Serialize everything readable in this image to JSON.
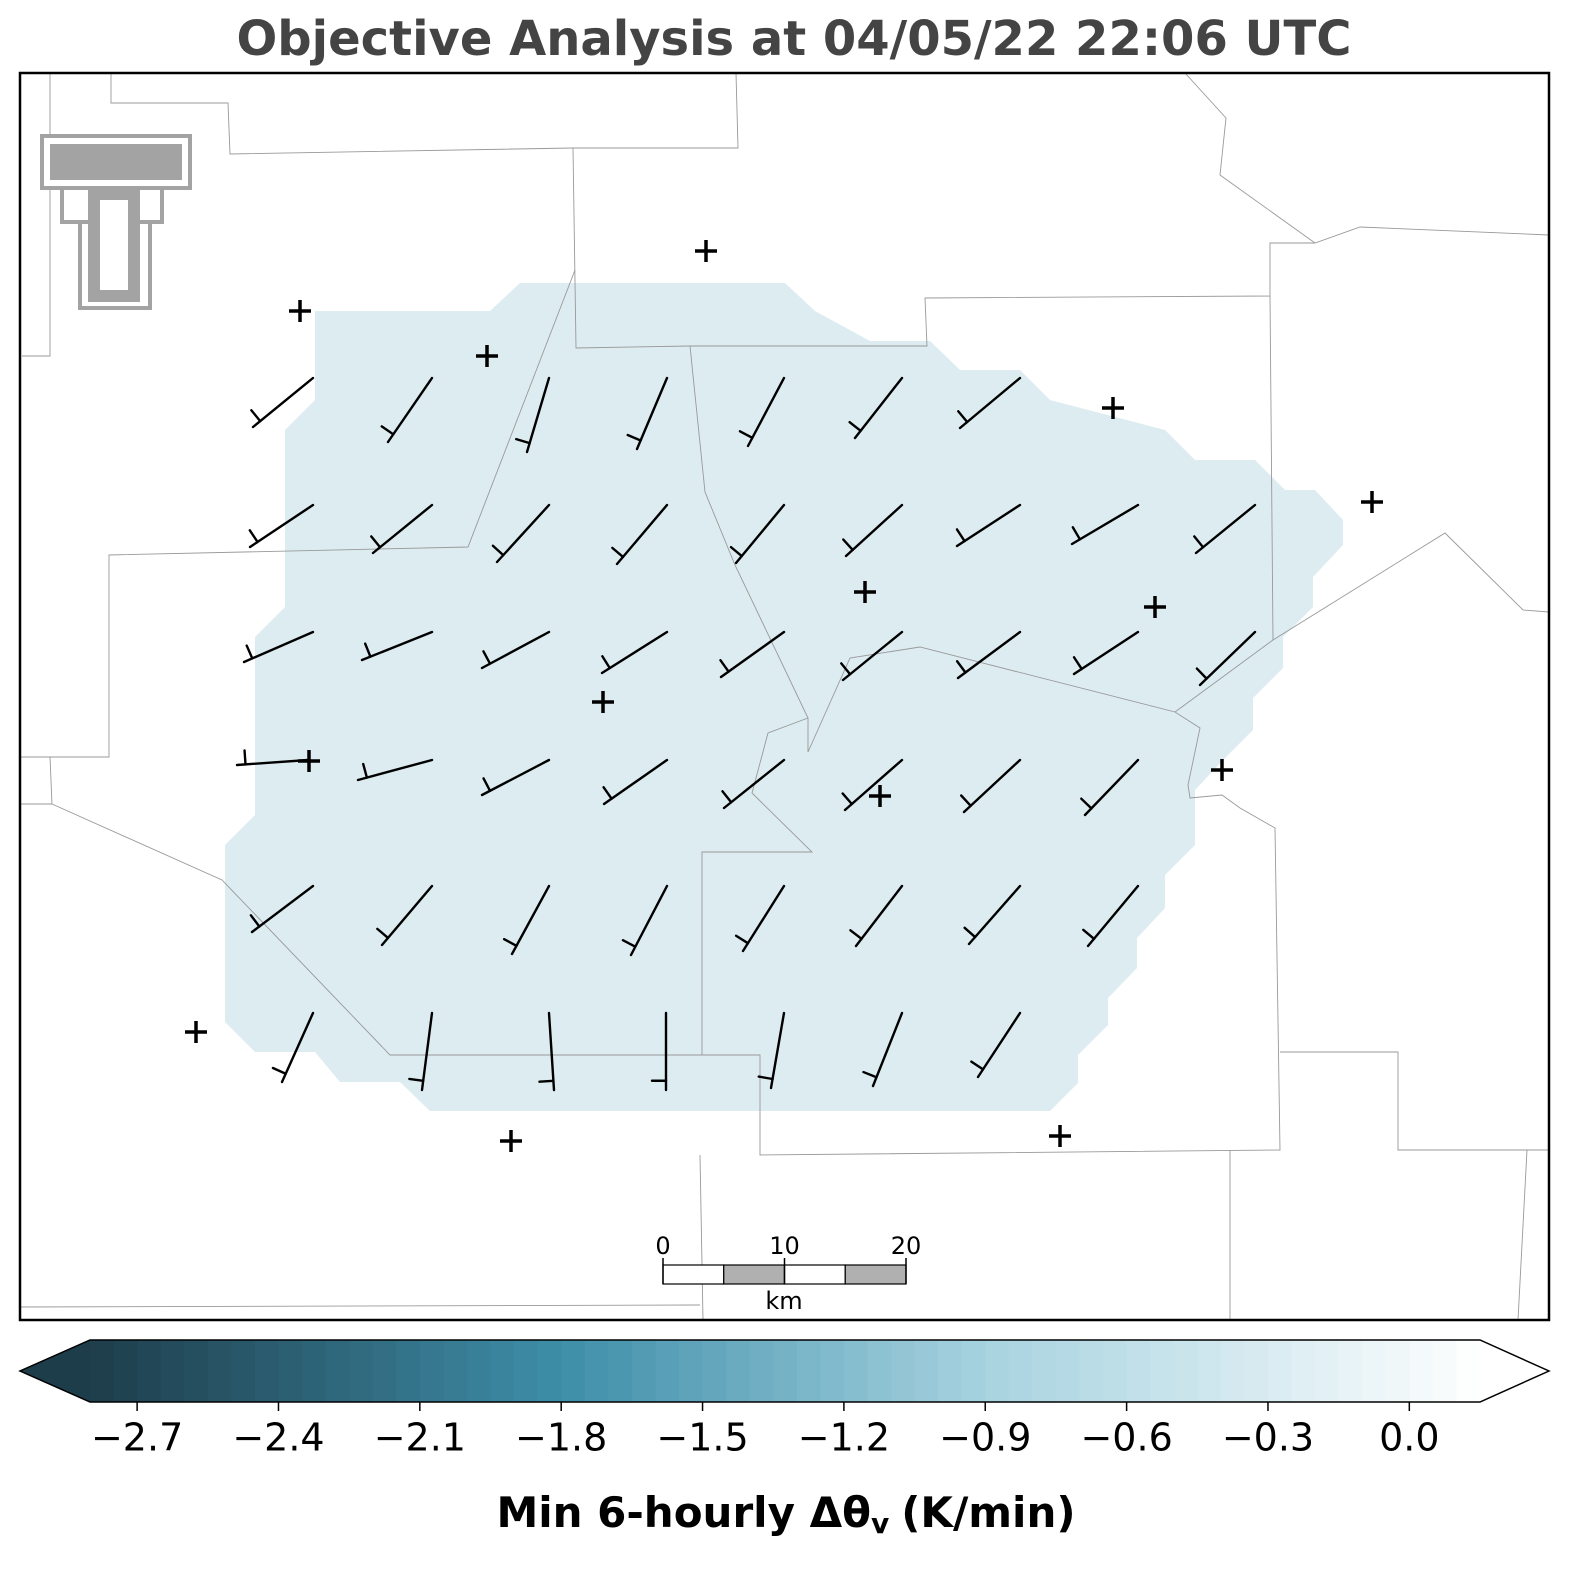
{
  "title": "Objective Analysis at 04/05/22 22:06 UTC",
  "colorbar": {
    "clim": [
      -2.8,
      0.15
    ],
    "ticks": [
      {
        "value": -2.7,
        "label": "−2.7"
      },
      {
        "value": -2.4,
        "label": "−2.4"
      },
      {
        "value": -2.1,
        "label": "−2.1"
      },
      {
        "value": -1.8,
        "label": "−1.8"
      },
      {
        "value": -1.5,
        "label": "−1.5"
      },
      {
        "value": -1.2,
        "label": "−1.2"
      },
      {
        "value": -0.9,
        "label": "−0.9"
      },
      {
        "value": -0.6,
        "label": "−0.6"
      },
      {
        "value": -0.3,
        "label": "−0.3"
      },
      {
        "value": 0,
        "label": "0.0"
      }
    ],
    "label": {
      "main": "Min 6-hourly Δθ",
      "subscript": "v",
      "unit": "(K/min)"
    }
  },
  "scale_bar": {
    "ticks": [
      0,
      10,
      20
    ],
    "unit": "km"
  }
}
